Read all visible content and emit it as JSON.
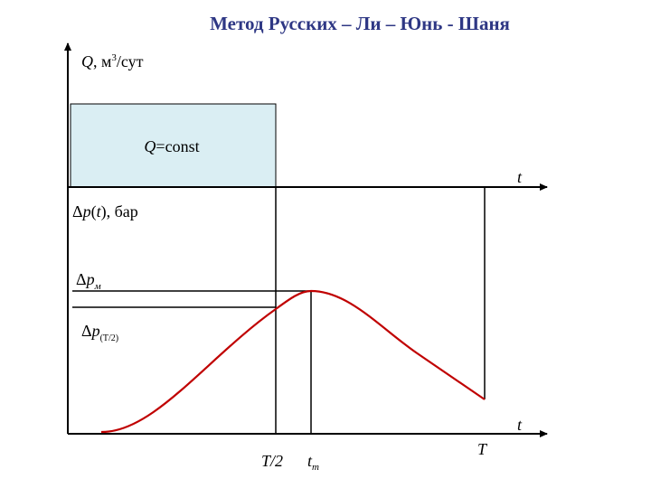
{
  "title": "Метод Русских – Ли – Юнь - Шаня",
  "upper_plot": {
    "y_label": [
      "Q",
      ", м",
      "3",
      "/сут"
    ],
    "box_label": [
      "Q",
      "=const"
    ],
    "x_label": "t"
  },
  "lower_plot": {
    "y_label": [
      "Δ",
      "p",
      "(",
      "t",
      "), бар"
    ],
    "dp_m": [
      "Δ",
      "p",
      "м"
    ],
    "dp_half": [
      "Δ",
      "p",
      "(T/2)"
    ],
    "x_label": "t",
    "x_markers": {
      "half": "T/2",
      "tm": [
        "t",
        "m"
      ],
      "end": "T"
    }
  }
}
